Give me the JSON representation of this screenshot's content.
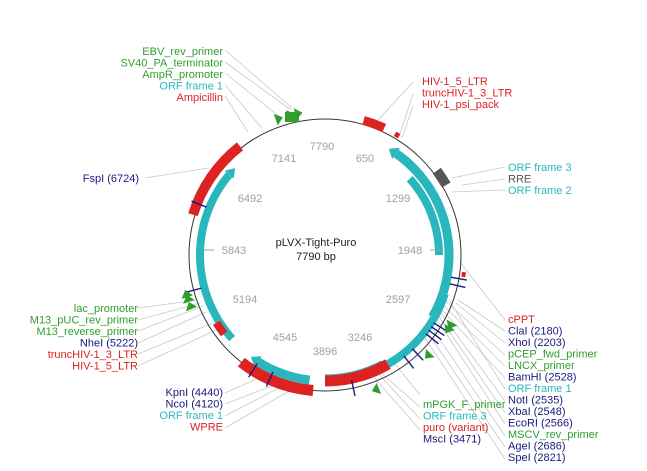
{
  "plasmid": {
    "name": "pLVX-Tight-Puro",
    "length_label": "7790 bp"
  },
  "colors": {
    "site": "#1a1a7e",
    "primer": "#2e9f2e",
    "orf": "#29b7bd",
    "feature": "#dd2222",
    "misc": "#555555",
    "tick": "#a0a0a0",
    "backbone": "#333333",
    "leader": "#c8c8c8"
  },
  "ticks": [
    "7790",
    "650",
    "1299",
    "1948",
    "2597",
    "3246",
    "3896",
    "4545",
    "5194",
    "5843",
    "6492",
    "7141"
  ],
  "labels": {
    "top_left": [
      {
        "text": "EBV_rev_primer",
        "kind": "primer"
      },
      {
        "text": "SV40_PA_terminator",
        "kind": "primer"
      },
      {
        "text": "AmpR_promoter",
        "kind": "primer"
      },
      {
        "text": "ORF frame 1",
        "kind": "orf"
      },
      {
        "text": "Ampicillin",
        "kind": "feature"
      }
    ],
    "fspi": [
      {
        "text": "FspI (6724)",
        "kind": "site"
      }
    ],
    "top_right": [
      {
        "text": "HIV-1_5_LTR",
        "kind": "feature"
      },
      {
        "text": "truncHIV-1_3_LTR",
        "kind": "feature"
      },
      {
        "text": "HIV-1_psi_pack",
        "kind": "feature"
      }
    ],
    "right_mid": [
      {
        "text": "ORF frame 3",
        "kind": "orf"
      },
      {
        "text": "RRE",
        "kind": "misc"
      },
      {
        "text": "ORF frame 2",
        "kind": "orf"
      }
    ],
    "left_bottom": [
      {
        "text": "lac_promoter",
        "kind": "primer"
      },
      {
        "text": "M13_pUC_rev_primer",
        "kind": "primer"
      },
      {
        "text": "M13_reverse_primer",
        "kind": "primer"
      },
      {
        "text": "NheI (5222)",
        "kind": "site"
      },
      {
        "text": "truncHIV-1_3_LTR",
        "kind": "feature"
      },
      {
        "text": "HIV-1_5_LTR",
        "kind": "feature"
      }
    ],
    "bottom_left": [
      {
        "text": "KpnI (4440)",
        "kind": "site"
      },
      {
        "text": "NcoI (4120)",
        "kind": "site"
      },
      {
        "text": "ORF frame 1",
        "kind": "orf"
      },
      {
        "text": "WPRE",
        "kind": "feature"
      }
    ],
    "bottom_mid": [
      {
        "text": "mPGK_F_primer",
        "kind": "primer"
      },
      {
        "text": "ORF frame 3",
        "kind": "orf"
      },
      {
        "text": "puro (variant)",
        "kind": "feature"
      },
      {
        "text": "MscI (3471)",
        "kind": "site"
      }
    ],
    "right_bottom": [
      {
        "text": "cPPT",
        "kind": "feature"
      },
      {
        "text": "ClaI (2180)",
        "kind": "site"
      },
      {
        "text": "XhoI (2203)",
        "kind": "site"
      },
      {
        "text": "pCEP_fwd_primer",
        "kind": "primer"
      },
      {
        "text": "LNCX_primer",
        "kind": "primer"
      },
      {
        "text": "BamHI (2528)",
        "kind": "site"
      },
      {
        "text": "ORF frame 1",
        "kind": "orf"
      },
      {
        "text": "NotI (2535)",
        "kind": "site"
      },
      {
        "text": "XbaI (2548)",
        "kind": "site"
      },
      {
        "text": "EcoRI (2566)",
        "kind": "site"
      },
      {
        "text": "MSCV_rev_primer",
        "kind": "primer"
      },
      {
        "text": "AgeI (2686)",
        "kind": "site"
      },
      {
        "text": "SpeI (2821)",
        "kind": "site"
      }
    ]
  }
}
